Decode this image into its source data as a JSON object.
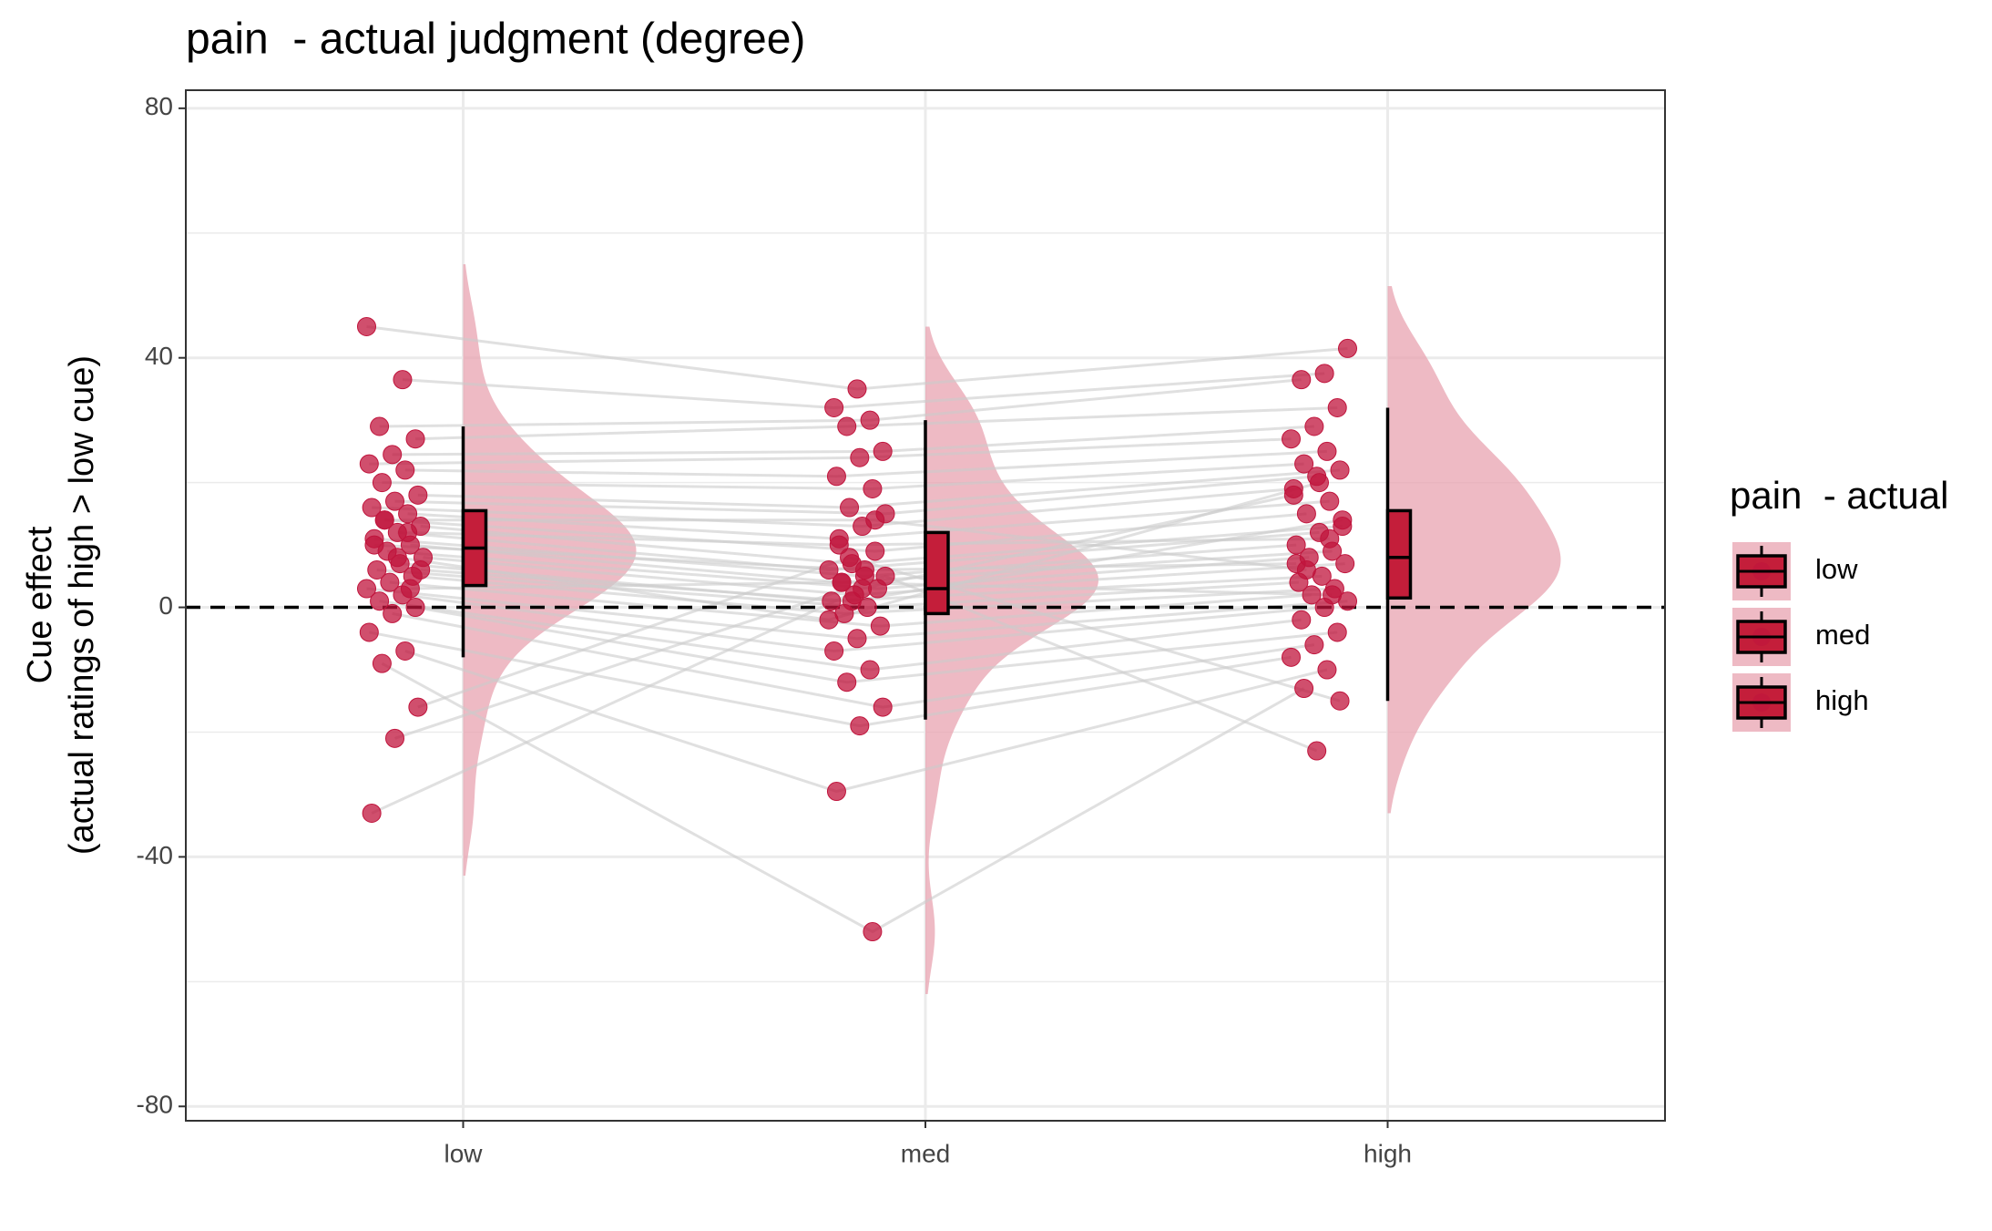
{
  "chart_data": {
    "type": "raincloud",
    "title": "pain  - actual judgment (degree)",
    "y_label": [
      "Cue effect",
      "(actual ratings of high > low cue)"
    ],
    "categories": [
      "low",
      "med",
      "high"
    ],
    "ylim": [
      -82.3,
      82.9
    ],
    "yticks": [
      -80,
      -40,
      0,
      40,
      80
    ],
    "minor_grid": [
      -60,
      -20,
      20,
      60
    ],
    "hline": 0,
    "grid": true,
    "point_color": "#c0143c",
    "density_color": "#e8a3b0",
    "box_color": "#c41e3a",
    "legend_title": "pain  - actual",
    "groups": [
      {
        "name": "low",
        "points": [
          45,
          36.5,
          29,
          27,
          24.5,
          23,
          22,
          20,
          18,
          17,
          16,
          15,
          14,
          13,
          12,
          11,
          10,
          9,
          8,
          7,
          6,
          5,
          4,
          3,
          2,
          1,
          0,
          -1,
          -4,
          -7,
          -9,
          -16,
          -21,
          -33,
          12,
          14,
          6,
          8,
          10,
          3
        ],
        "box": {
          "whisker_low": -8,
          "q1": 3.5,
          "median": 9.5,
          "q3": 15.5,
          "whisker_high": 29
        }
      },
      {
        "name": "med",
        "points": [
          35,
          32,
          30,
          29,
          25,
          24,
          21,
          19,
          16,
          15,
          13,
          11,
          9,
          7,
          6,
          5,
          4,
          3,
          2,
          1,
          0,
          -1,
          -3,
          -5,
          -7,
          -10,
          -12,
          -16,
          -19,
          -29.5,
          -52,
          8,
          5,
          3,
          10,
          14,
          1,
          -2,
          6,
          4
        ],
        "box": {
          "whisker_low": -18,
          "q1": -1,
          "median": 3,
          "q3": 12,
          "whisker_high": 30
        }
      },
      {
        "name": "high",
        "points": [
          41.5,
          37.5,
          36.5,
          32,
          29,
          27,
          25,
          23,
          22,
          21,
          19,
          17,
          15,
          13,
          12,
          10,
          9,
          8,
          7,
          5,
          4,
          3,
          2,
          1,
          0,
          -2,
          -4,
          -6,
          -8,
          -10,
          -13,
          -15,
          -23,
          18,
          11,
          6,
          14,
          20,
          7,
          2
        ],
        "box": {
          "whisker_low": -15,
          "q1": 1.5,
          "median": 8,
          "q3": 15.5,
          "whisker_high": 32
        }
      }
    ]
  }
}
